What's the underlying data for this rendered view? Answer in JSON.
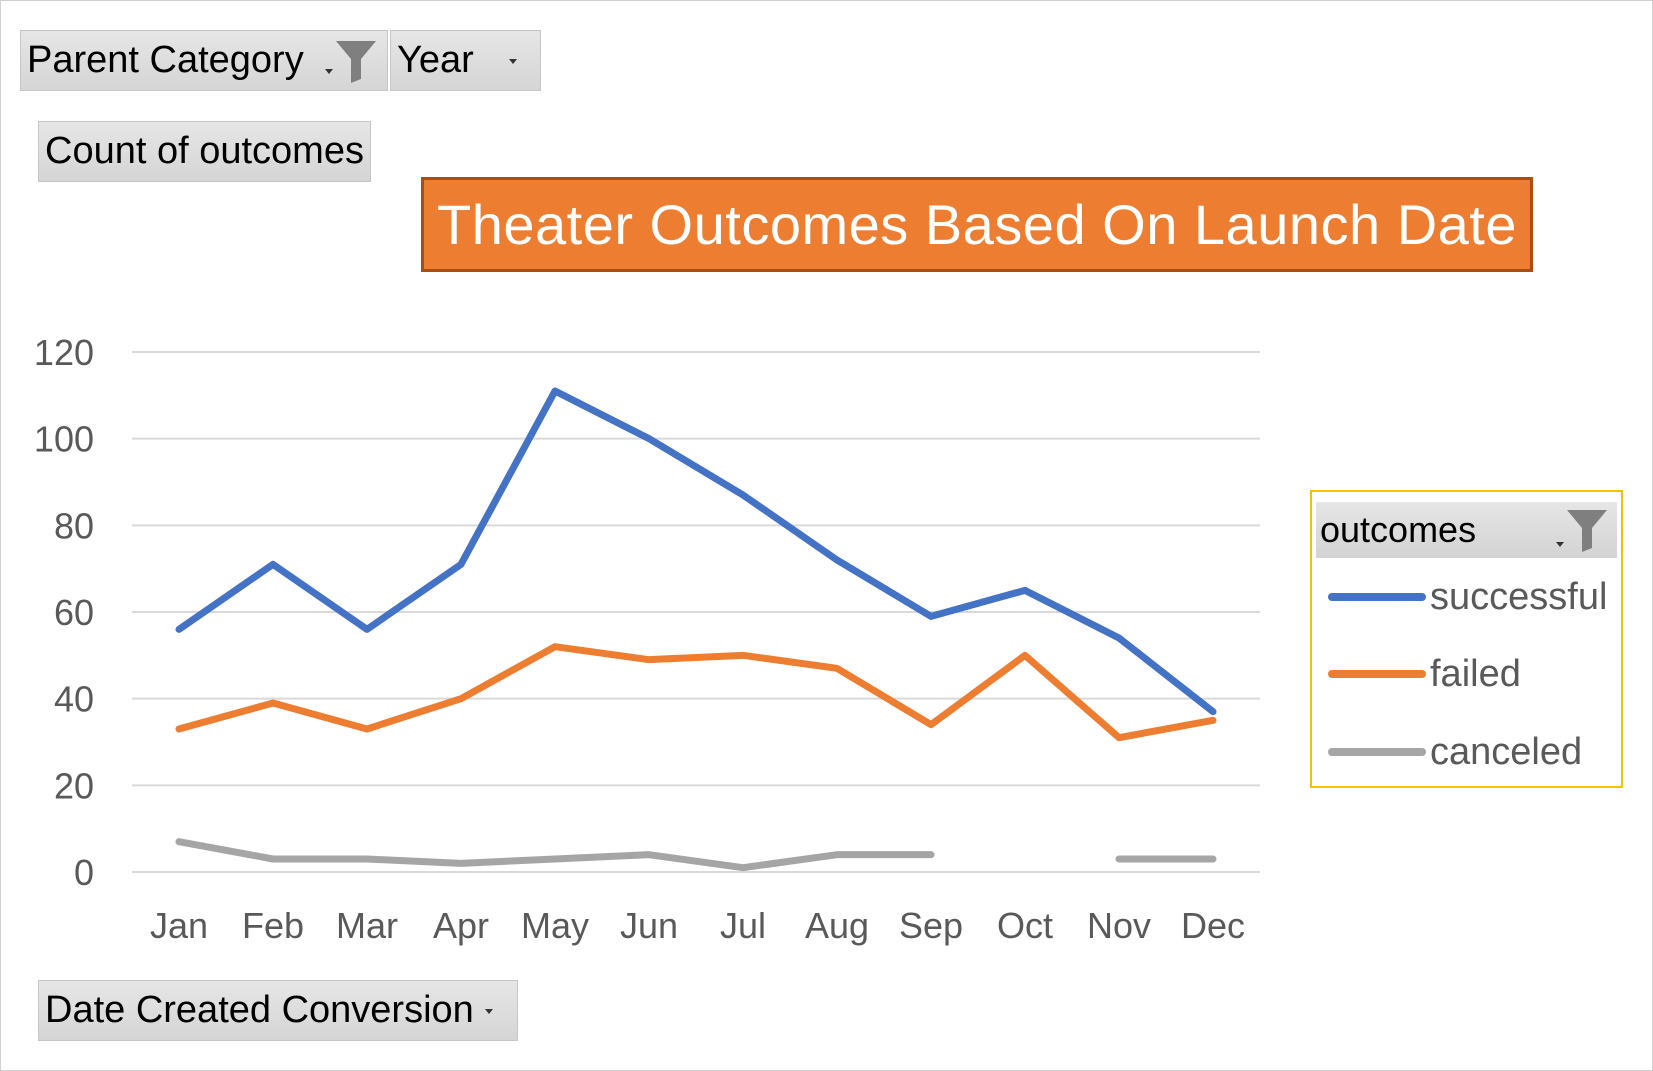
{
  "filters": {
    "parent_category_label": "Parent Category",
    "year_label": "Year",
    "values_label": "Count of outcomes",
    "axis_field_label": "Date Created Conversion"
  },
  "legend": {
    "field_label": "outcomes"
  },
  "colors": {
    "successful": "#4472c4",
    "failed": "#ed7d31",
    "canceled": "#a5a5a5",
    "title_bg": "#ed7d31",
    "grid": "#d9d9d9",
    "legend_border": "#f2c200"
  },
  "icons": [
    "funnel-icon",
    "dropdown-arrow-icon"
  ],
  "chart_data": {
    "type": "line",
    "title": "Theater Outcomes Based On Launch Date",
    "xlabel": "",
    "ylabel": "",
    "categories": [
      "Jan",
      "Feb",
      "Mar",
      "Apr",
      "May",
      "Jun",
      "Jul",
      "Aug",
      "Sep",
      "Oct",
      "Nov",
      "Dec"
    ],
    "yticks": [
      0,
      20,
      40,
      60,
      80,
      100,
      120
    ],
    "ylim": [
      0,
      120
    ],
    "grid": true,
    "legend_position": "right",
    "series": [
      {
        "name": "successful",
        "values": [
          56,
          71,
          56,
          71,
          111,
          100,
          87,
          72,
          59,
          65,
          54,
          37
        ]
      },
      {
        "name": "failed",
        "values": [
          33,
          39,
          33,
          40,
          52,
          49,
          50,
          47,
          34,
          50,
          31,
          35
        ]
      },
      {
        "name": "canceled",
        "values": [
          7,
          3,
          3,
          2,
          3,
          4,
          1,
          4,
          4,
          null,
          3,
          3
        ]
      }
    ]
  }
}
